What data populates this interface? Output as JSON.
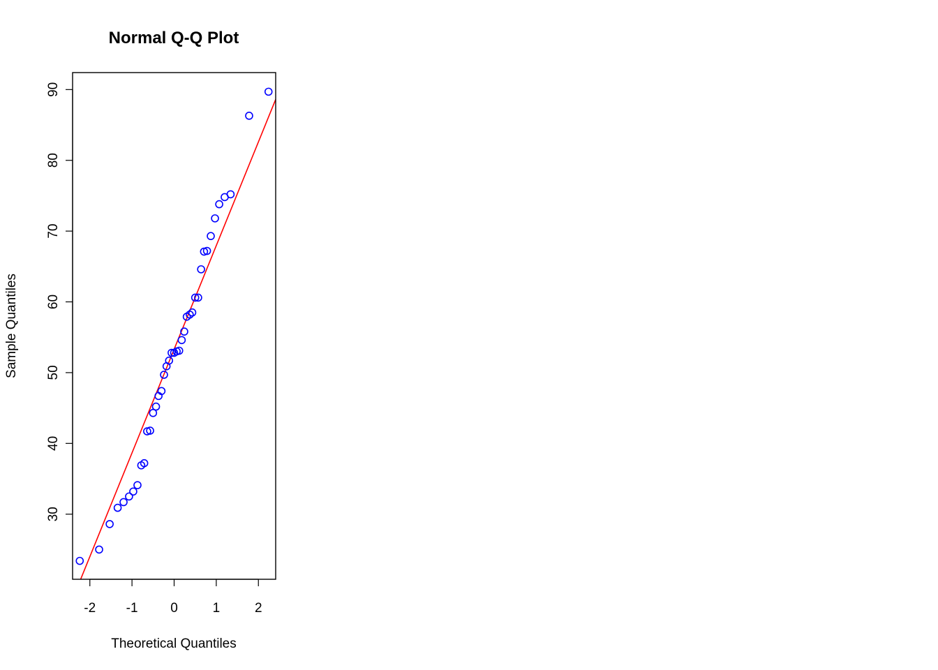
{
  "chart_data": {
    "type": "scatter",
    "title": "Normal Q-Q Plot",
    "xlabel": "Theoretical Quantiles",
    "ylabel": "Sample Quantiles",
    "xlim": [
      -2.41,
      2.41
    ],
    "ylim": [
      20.8,
      92.4
    ],
    "x_ticks": [
      -2,
      -1,
      0,
      1,
      2
    ],
    "x_tick_labels": [
      "-2",
      "-1",
      "0",
      "1",
      "2"
    ],
    "y_ticks": [
      30,
      40,
      50,
      60,
      70,
      80,
      90
    ],
    "y_tick_labels": [
      "30",
      "40",
      "50",
      "60",
      "70",
      "80",
      "90"
    ],
    "grid": false,
    "point_color": "#0000ff",
    "line_color": "#ff0000",
    "series": [
      {
        "points": [
          [
            -2.24,
            23.4
          ],
          [
            -1.78,
            25.0
          ],
          [
            -1.53,
            28.6
          ],
          [
            -1.34,
            30.9
          ],
          [
            -1.2,
            31.7
          ],
          [
            -1.07,
            32.5
          ],
          [
            -0.97,
            33.2
          ],
          [
            -0.87,
            34.1
          ],
          [
            -0.78,
            36.9
          ],
          [
            -0.71,
            37.2
          ],
          [
            -0.64,
            41.7
          ],
          [
            -0.57,
            41.8
          ],
          [
            -0.5,
            44.3
          ],
          [
            -0.43,
            45.2
          ],
          [
            -0.37,
            46.7
          ],
          [
            -0.3,
            47.4
          ],
          [
            -0.24,
            49.7
          ],
          [
            -0.18,
            50.9
          ],
          [
            -0.12,
            51.7
          ],
          [
            -0.06,
            52.8
          ],
          [
            0.0,
            52.8
          ],
          [
            0.06,
            53.0
          ],
          [
            0.12,
            53.1
          ],
          [
            0.18,
            54.6
          ],
          [
            0.24,
            55.8
          ],
          [
            0.3,
            57.9
          ],
          [
            0.37,
            58.2
          ],
          [
            0.43,
            58.5
          ],
          [
            0.5,
            60.6
          ],
          [
            0.57,
            60.6
          ],
          [
            0.64,
            64.6
          ],
          [
            0.71,
            67.1
          ],
          [
            0.78,
            67.2
          ],
          [
            0.87,
            69.3
          ],
          [
            0.97,
            71.8
          ],
          [
            1.07,
            73.8
          ],
          [
            1.2,
            74.8
          ],
          [
            1.34,
            75.2
          ],
          [
            1.78,
            86.3
          ],
          [
            2.24,
            89.7
          ]
        ]
      }
    ],
    "reference_line": {
      "intercept": 53.3,
      "slope": 14.65
    }
  }
}
